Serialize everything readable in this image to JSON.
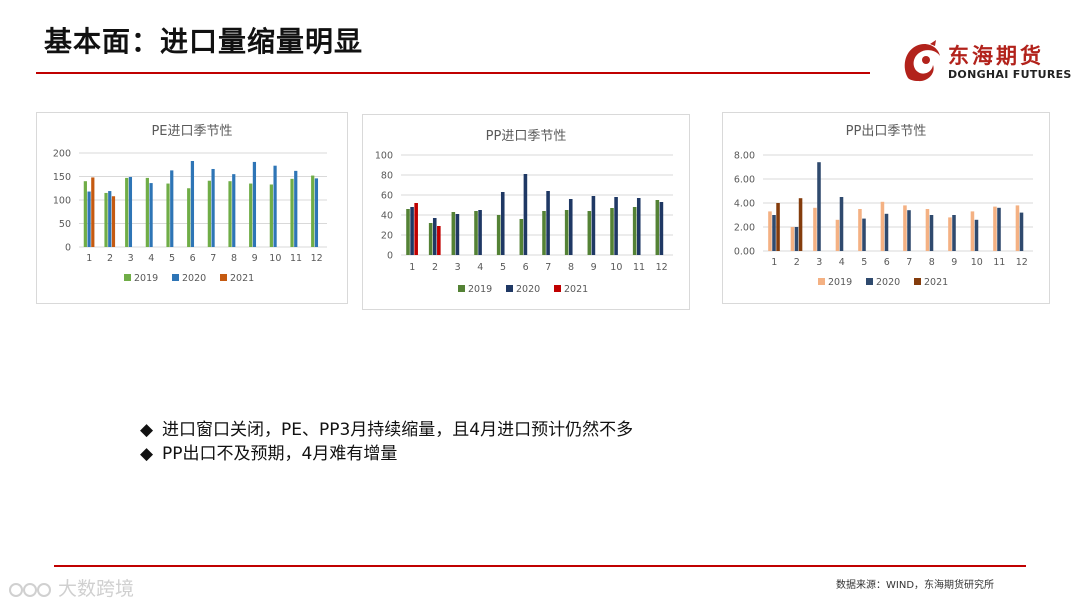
{
  "page": {
    "title": "基本面：进口量缩量明显",
    "logo_cn": "东海期货",
    "logo_en": "DONGHAI FUTURES",
    "bullets": [
      "进口窗口关闭，PE、PP3月持续缩量，且4月进口预计仍然不多",
      "PP出口不及预期，4月难有增量"
    ],
    "bullet_marker": "◆",
    "source": "数据来源：WIND，东海期货研究所",
    "watermark": "大数跨境",
    "accent_color": "#c00000"
  },
  "chart_data": [
    {
      "type": "bar",
      "title": "PE进口季节性",
      "xlabel": "",
      "ylabel": "",
      "categories": [
        "1",
        "2",
        "3",
        "4",
        "5",
        "6",
        "7",
        "8",
        "9",
        "10",
        "11",
        "12"
      ],
      "ylim": [
        0,
        200
      ],
      "yticks": [
        0,
        50,
        100,
        150,
        200
      ],
      "ytick_labels": [
        "0",
        "50",
        "100",
        "150",
        "200"
      ],
      "grid": true,
      "legend": "bottom",
      "series": [
        {
          "name": "2019",
          "color": "#70ad47",
          "values": [
            140,
            115,
            147,
            147,
            135,
            125,
            141,
            140,
            135,
            133,
            145,
            152
          ]
        },
        {
          "name": "2020",
          "color": "#2e75b6",
          "values": [
            118,
            119,
            149,
            136,
            163,
            183,
            166,
            155,
            181,
            173,
            162,
            146
          ]
        },
        {
          "name": "2021",
          "color": "#c55a11",
          "values": [
            148,
            108,
            null,
            null,
            null,
            null,
            null,
            null,
            null,
            null,
            null,
            null
          ]
        }
      ]
    },
    {
      "type": "bar",
      "title": "PP进口季节性",
      "xlabel": "",
      "ylabel": "",
      "categories": [
        "1",
        "2",
        "3",
        "4",
        "5",
        "6",
        "7",
        "8",
        "9",
        "10",
        "11",
        "12"
      ],
      "ylim": [
        0,
        100
      ],
      "yticks": [
        0,
        20,
        40,
        60,
        80,
        100
      ],
      "ytick_labels": [
        "0",
        "20",
        "40",
        "60",
        "80",
        "100"
      ],
      "grid": true,
      "legend": "bottom",
      "series": [
        {
          "name": "2019",
          "color": "#548235",
          "values": [
            46,
            32,
            43,
            44,
            40,
            36,
            44,
            45,
            44,
            47,
            48,
            55
          ]
        },
        {
          "name": "2020",
          "color": "#1f3864",
          "values": [
            48,
            37,
            41,
            45,
            63,
            81,
            64,
            56,
            59,
            58,
            57,
            53
          ]
        },
        {
          "name": "2021",
          "color": "#c00000",
          "values": [
            52,
            29,
            null,
            null,
            null,
            null,
            null,
            null,
            null,
            null,
            null,
            null
          ]
        }
      ]
    },
    {
      "type": "bar",
      "title": "PP出口季节性",
      "xlabel": "",
      "ylabel": "",
      "categories": [
        "1",
        "2",
        "3",
        "4",
        "5",
        "6",
        "7",
        "8",
        "9",
        "10",
        "11",
        "12"
      ],
      "ylim": [
        0,
        8
      ],
      "yticks": [
        0,
        2,
        4,
        6,
        8
      ],
      "ytick_labels": [
        "0.00",
        "2.00",
        "4.00",
        "6.00",
        "8.00"
      ],
      "grid": true,
      "legend": "bottom",
      "series": [
        {
          "name": "2019",
          "color": "#f4b183",
          "values": [
            3.3,
            2.0,
            3.6,
            2.6,
            3.5,
            4.1,
            3.8,
            3.5,
            2.8,
            3.3,
            3.7,
            3.8
          ]
        },
        {
          "name": "2020",
          "color": "#2f4a6e",
          "values": [
            3.0,
            2.0,
            7.4,
            4.5,
            2.7,
            3.1,
            3.4,
            3.0,
            3.0,
            2.6,
            3.6,
            3.2
          ]
        },
        {
          "name": "2021",
          "color": "#843c0c",
          "values": [
            4.0,
            4.4,
            null,
            null,
            null,
            null,
            null,
            null,
            null,
            null,
            null,
            null
          ]
        }
      ]
    }
  ]
}
